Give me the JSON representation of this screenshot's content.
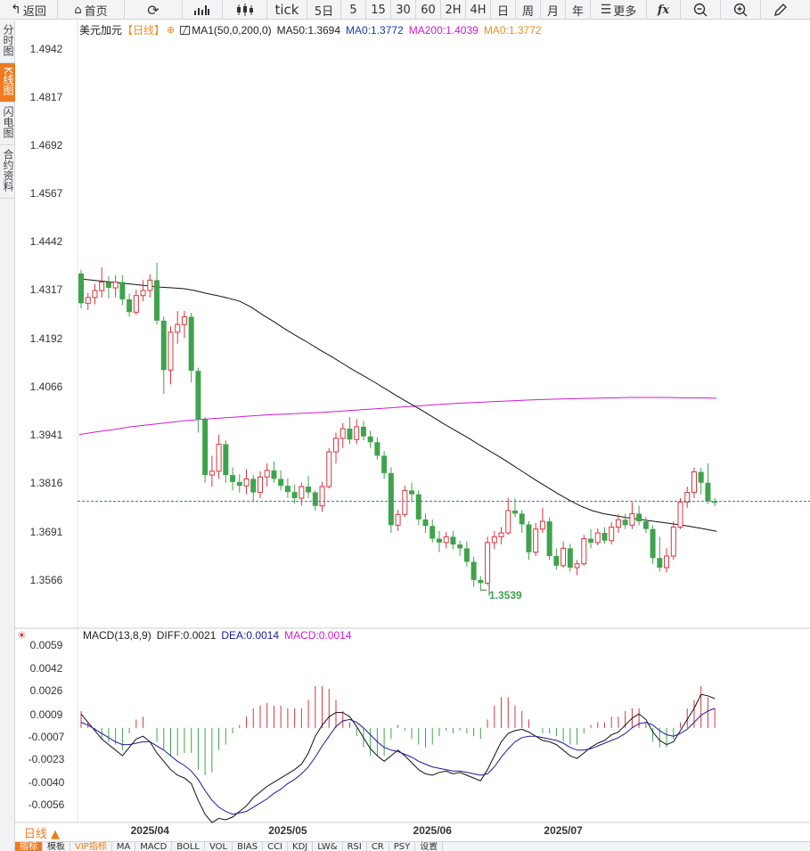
{
  "toolbar": {
    "back": "返回",
    "home": "首页",
    "tick": "tick",
    "periods": [
      "5日",
      "5",
      "15",
      "30",
      "60",
      "2H",
      "4H",
      "日",
      "周",
      "月",
      "年"
    ],
    "more": "更多"
  },
  "sidebar": {
    "tabs": [
      {
        "label": "分时图",
        "active": false
      },
      {
        "label": "K线图",
        "active": true
      },
      {
        "label": "闪电图",
        "active": false
      },
      {
        "label": "合约资料",
        "active": false
      }
    ]
  },
  "main_legend": {
    "symbol": "美元加元",
    "period": "【日线】",
    "indicator": "MA1(50,0,200,0)",
    "ma50": "MA50:1.3694",
    "ma0": "MA0:1.3772",
    "ma200": "MA200:1.4039",
    "ma0b": "MA0:1.3772"
  },
  "macd_legend": {
    "name": "MACD(13,8,9)",
    "diff": "DIFF:0.0021",
    "dea": "DEA:0.0014",
    "macd": "MACD:0.0014"
  },
  "price_axis": [
    "1.4942",
    "1.4817",
    "1.4692",
    "1.4567",
    "1.4442",
    "1.4317",
    "1.4192",
    "1.4066",
    "1.3941",
    "1.3816",
    "1.3691",
    "1.3566"
  ],
  "macd_axis": [
    "0.0059",
    "0.0042",
    "0.0026",
    "0.0009",
    "-0.0007",
    "-0.0023",
    "-0.0040",
    "-0.0056"
  ],
  "date_axis": [
    "2025/04",
    "2025/05",
    "2025/06",
    "2025/07"
  ],
  "low_label": "1.3539",
  "period_tag": "日线 ▲",
  "bottom_tabs": [
    "指标",
    "模板",
    "VIP指标",
    "MA",
    "MACD",
    "BOLL",
    "VOL",
    "BIAS",
    "CCI",
    "KDJ",
    "LW&",
    "RSI",
    "CR",
    "PSY",
    "设置"
  ],
  "colors": {
    "up": "#d9363e",
    "down": "#3fa34d",
    "ma50": "#111111",
    "ma200": "#d21ad6",
    "ma0": "#f08c22",
    "dea": "#1a1a9a",
    "accent": "#f07b1f"
  },
  "chart_data": {
    "type": "candlestick",
    "symbol": "USD/CAD",
    "ylim": [
      1.354,
      1.496
    ],
    "macd_ylim": [
      -0.0066,
      0.006
    ],
    "last_price": 1.3772,
    "low": 1.3539,
    "candles": [
      [
        1.4362,
        1.4372,
        1.4272,
        1.4285
      ],
      [
        1.4285,
        1.4312,
        1.4268,
        1.43
      ],
      [
        1.43,
        1.4335,
        1.4282,
        1.4318
      ],
      [
        1.4318,
        1.4378,
        1.43,
        1.434
      ],
      [
        1.434,
        1.4355,
        1.4298,
        1.4325
      ],
      [
        1.4325,
        1.4358,
        1.43,
        1.434
      ],
      [
        1.434,
        1.4358,
        1.428,
        1.4295
      ],
      [
        1.4295,
        1.431,
        1.425,
        1.4262
      ],
      [
        1.4262,
        1.432,
        1.4255,
        1.4305
      ],
      [
        1.4305,
        1.4345,
        1.429,
        1.4318
      ],
      [
        1.4318,
        1.436,
        1.43,
        1.4345
      ],
      [
        1.4345,
        1.439,
        1.423,
        1.424
      ],
      [
        1.424,
        1.425,
        1.405,
        1.4112
      ],
      [
        1.4112,
        1.4225,
        1.4075,
        1.421
      ],
      [
        1.421,
        1.4265,
        1.418,
        1.423
      ],
      [
        1.423,
        1.4265,
        1.4195,
        1.425
      ],
      [
        1.425,
        1.426,
        1.408,
        1.411
      ],
      [
        1.411,
        1.4118,
        1.395,
        1.3985
      ],
      [
        1.3985,
        1.399,
        1.382,
        1.384
      ],
      [
        1.384,
        1.389,
        1.381,
        1.385
      ],
      [
        1.385,
        1.3945,
        1.383,
        1.392
      ],
      [
        1.392,
        1.393,
        1.382,
        1.384
      ],
      [
        1.384,
        1.386,
        1.38,
        1.3822
      ],
      [
        1.3822,
        1.3842,
        1.3795,
        1.3812
      ],
      [
        1.3812,
        1.3855,
        1.379,
        1.383
      ],
      [
        1.383,
        1.384,
        1.377,
        1.3795
      ],
      [
        1.3795,
        1.385,
        1.378,
        1.3835
      ],
      [
        1.3835,
        1.387,
        1.381,
        1.3852
      ],
      [
        1.3852,
        1.3875,
        1.382,
        1.383
      ],
      [
        1.383,
        1.3852,
        1.38,
        1.3812
      ],
      [
        1.3812,
        1.3832,
        1.378,
        1.3796
      ],
      [
        1.3796,
        1.3815,
        1.3765,
        1.378
      ],
      [
        1.378,
        1.382,
        1.376,
        1.381
      ],
      [
        1.381,
        1.3838,
        1.378,
        1.3795
      ],
      [
        1.3795,
        1.38,
        1.3748,
        1.376
      ],
      [
        1.376,
        1.3823,
        1.3745,
        1.381
      ],
      [
        1.381,
        1.391,
        1.3805,
        1.39
      ],
      [
        1.39,
        1.395,
        1.387,
        1.3935
      ],
      [
        1.3935,
        1.3975,
        1.391,
        1.396
      ],
      [
        1.396,
        1.399,
        1.392,
        1.3932
      ],
      [
        1.3932,
        1.3985,
        1.392,
        1.3965
      ],
      [
        1.3965,
        1.398,
        1.393,
        1.394
      ],
      [
        1.394,
        1.3955,
        1.391,
        1.3925
      ],
      [
        1.3925,
        1.3938,
        1.388,
        1.389
      ],
      [
        1.389,
        1.3902,
        1.383,
        1.3845
      ],
      [
        1.3845,
        1.386,
        1.369,
        1.371
      ],
      [
        1.371,
        1.375,
        1.3695,
        1.3738
      ],
      [
        1.3738,
        1.3812,
        1.373,
        1.38
      ],
      [
        1.38,
        1.382,
        1.377,
        1.379
      ],
      [
        1.379,
        1.38,
        1.371,
        1.3725
      ],
      [
        1.3725,
        1.374,
        1.369,
        1.3708
      ],
      [
        1.3708,
        1.3725,
        1.3665,
        1.3675
      ],
      [
        1.3675,
        1.3695,
        1.364,
        1.3665
      ],
      [
        1.3665,
        1.3692,
        1.365,
        1.368
      ],
      [
        1.368,
        1.3695,
        1.3648,
        1.366
      ],
      [
        1.366,
        1.367,
        1.363,
        1.365
      ],
      [
        1.365,
        1.3668,
        1.3602,
        1.3615
      ],
      [
        1.3615,
        1.3628,
        1.355,
        1.3568
      ],
      [
        1.3568,
        1.3578,
        1.3539,
        1.356
      ],
      [
        1.356,
        1.368,
        1.3555,
        1.3665
      ],
      [
        1.3665,
        1.3695,
        1.3648,
        1.368
      ],
      [
        1.368,
        1.3705,
        1.366,
        1.369
      ],
      [
        1.369,
        1.378,
        1.3685,
        1.3748
      ],
      [
        1.3748,
        1.378,
        1.373,
        1.374
      ],
      [
        1.374,
        1.375,
        1.369,
        1.3712
      ],
      [
        1.3712,
        1.372,
        1.362,
        1.364
      ],
      [
        1.364,
        1.3715,
        1.363,
        1.37
      ],
      [
        1.37,
        1.3755,
        1.369,
        1.372
      ],
      [
        1.372,
        1.373,
        1.362,
        1.363
      ],
      [
        1.363,
        1.365,
        1.3595,
        1.3605
      ],
      [
        1.3605,
        1.3668,
        1.36,
        1.365
      ],
      [
        1.365,
        1.3662,
        1.359,
        1.36
      ],
      [
        1.36,
        1.362,
        1.358,
        1.361
      ],
      [
        1.361,
        1.3685,
        1.3605,
        1.3675
      ],
      [
        1.3675,
        1.37,
        1.365,
        1.3665
      ],
      [
        1.3665,
        1.3702,
        1.3658,
        1.369
      ],
      [
        1.369,
        1.3705,
        1.3662,
        1.367
      ],
      [
        1.367,
        1.3718,
        1.366,
        1.3705
      ],
      [
        1.3705,
        1.3738,
        1.369,
        1.3724
      ],
      [
        1.3724,
        1.374,
        1.37,
        1.371
      ],
      [
        1.371,
        1.377,
        1.37,
        1.374
      ],
      [
        1.374,
        1.376,
        1.371,
        1.372
      ],
      [
        1.372,
        1.3732,
        1.369,
        1.37
      ],
      [
        1.37,
        1.371,
        1.361,
        1.3625
      ],
      [
        1.3625,
        1.368,
        1.359,
        1.36
      ],
      [
        1.36,
        1.365,
        1.3588,
        1.363
      ],
      [
        1.363,
        1.372,
        1.362,
        1.3705
      ],
      [
        1.3705,
        1.378,
        1.37,
        1.377
      ],
      [
        1.377,
        1.381,
        1.3755,
        1.3795
      ],
      [
        1.3795,
        1.386,
        1.378,
        1.3848
      ],
      [
        1.3848,
        1.3858,
        1.379,
        1.382
      ],
      [
        1.382,
        1.387,
        1.3765,
        1.3772
      ],
      [
        1.3772,
        1.378,
        1.376,
        1.3768
      ]
    ],
    "ma50": [
      1.4348,
      1.4345,
      1.4342,
      1.4339,
      1.4336,
      1.4333,
      1.433,
      1.4327,
      1.4325,
      1.4323,
      1.4318,
      1.4311,
      1.4305,
      1.4298,
      1.429,
      1.4275,
      1.4255,
      1.4237,
      1.4218,
      1.42,
      1.4183,
      1.4165,
      1.4148,
      1.413,
      1.4112,
      1.4095,
      1.4078,
      1.406,
      1.4042,
      1.4025,
      1.4008,
      1.399,
      1.3972,
      1.3955,
      1.3938,
      1.392,
      1.3902,
      1.3885,
      1.3866,
      1.3847,
      1.3828,
      1.381,
      1.3792,
      1.3775,
      1.376,
      1.3748,
      1.374,
      1.3735,
      1.373,
      1.3726,
      1.3722,
      1.3718,
      1.3714,
      1.371,
      1.3705,
      1.37,
      1.3694
    ],
    "ma200": [
      1.3945,
      1.3952,
      1.3958,
      1.3965,
      1.397,
      1.3975,
      1.398,
      1.3984,
      1.3987,
      1.399,
      1.3993,
      1.3996,
      1.3998,
      1.4,
      1.4002,
      1.4005,
      1.4008,
      1.4011,
      1.4014,
      1.4017,
      1.402,
      1.4023,
      1.4026,
      1.4028,
      1.403,
      1.4032,
      1.4034,
      1.4036,
      1.4037,
      1.4038,
      1.4039,
      1.404,
      1.4041,
      1.4041,
      1.4041,
      1.404,
      1.404,
      1.4039
    ],
    "diff": [
      0.001,
      0.0004,
      -0.0002,
      -0.0008,
      -0.0012,
      -0.0016,
      -0.002,
      -0.0014,
      -0.0008,
      -0.0006,
      -0.001,
      -0.0018,
      -0.0024,
      -0.003,
      -0.0034,
      -0.0036,
      -0.004,
      -0.0052,
      -0.0062,
      -0.0068,
      -0.0065,
      -0.0066,
      -0.0064,
      -0.006,
      -0.0056,
      -0.005,
      -0.0046,
      -0.0042,
      -0.0039,
      -0.0036,
      -0.0033,
      -0.003,
      -0.0026,
      -0.0018,
      -0.0006,
      0.0002,
      0.0008,
      0.0011,
      0.0011,
      0.0008,
      0.0001,
      -0.0007,
      -0.0015,
      -0.002,
      -0.0024,
      -0.002,
      -0.0016,
      -0.002,
      -0.0025,
      -0.003,
      -0.0033,
      -0.0034,
      -0.0032,
      -0.0031,
      -0.0033,
      -0.0032,
      -0.0034,
      -0.0036,
      -0.0038,
      -0.003,
      -0.002,
      -0.001,
      -0.0004,
      -0.0002,
      -0.0001,
      -0.0003,
      -0.0006,
      -0.0009,
      -0.001,
      -0.0012,
      -0.0016,
      -0.002,
      -0.0022,
      -0.0018,
      -0.0014,
      -0.0011,
      -0.0009,
      -0.0005,
      -0.0003,
      0.0002,
      0.0007,
      0.001,
      0.0006,
      -0.0003,
      -0.0009,
      -0.0012,
      -0.001,
      -0.0002,
      0.0006,
      0.0014,
      0.0024,
      0.0023,
      0.0021
    ],
    "dea": [
      0.0004,
      0.0002,
      -0.0001,
      -0.0004,
      -0.0007,
      -0.001,
      -0.0012,
      -0.0012,
      -0.0011,
      -0.001,
      -0.001,
      -0.0013,
      -0.0016,
      -0.002,
      -0.0024,
      -0.0027,
      -0.0031,
      -0.0037,
      -0.0045,
      -0.0052,
      -0.0057,
      -0.006,
      -0.0062,
      -0.0061,
      -0.006,
      -0.0057,
      -0.0054,
      -0.0051,
      -0.0047,
      -0.0044,
      -0.004,
      -0.0037,
      -0.0033,
      -0.0028,
      -0.0021,
      -0.0013,
      -0.0006,
      0.0001,
      0.0005,
      0.0006,
      0.0004,
      0.0,
      -0.0005,
      -0.001,
      -0.0014,
      -0.0016,
      -0.0017,
      -0.0019,
      -0.0021,
      -0.0024,
      -0.0026,
      -0.0028,
      -0.0029,
      -0.003,
      -0.0031,
      -0.0031,
      -0.0032,
      -0.0033,
      -0.0034,
      -0.0033,
      -0.0028,
      -0.0021,
      -0.0015,
      -0.001,
      -0.0007,
      -0.0006,
      -0.0006,
      -0.0007,
      -0.0008,
      -0.0009,
      -0.0011,
      -0.0014,
      -0.0016,
      -0.0016,
      -0.0015,
      -0.0013,
      -0.0011,
      -0.0009,
      -0.0007,
      -0.0004,
      0.0,
      0.0003,
      0.0004,
      0.0002,
      -0.0002,
      -0.0005,
      -0.0006,
      -0.0004,
      -0.0001,
      0.0004,
      0.0009,
      0.0012,
      0.0014
    ]
  }
}
